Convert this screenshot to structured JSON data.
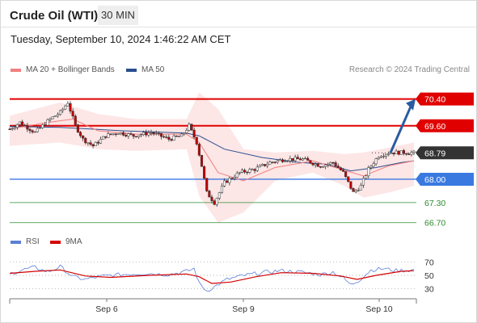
{
  "header": {
    "title": "Crude Oil (WTI)",
    "timeframe": "30 MIN",
    "datetime": "Tuesday, September 10, 2024 1:46:22 AM CET"
  },
  "legend": {
    "ma20_label": "MA 20 + Bollinger Bands",
    "ma50_label": "MA 50",
    "ma20_color": "#f08080",
    "ma50_color": "#2a4f8f",
    "credit": "Research © 2024 Trading Central"
  },
  "rsi_legend": {
    "rsi_label": "RSI",
    "ma9_label": "9MA",
    "rsi_color": "#5b7fd6",
    "ma9_color": "#d40000"
  },
  "colors": {
    "resistance": "#e00000",
    "support": "#3a7ae0",
    "secondary_support": "#2e8b2e",
    "current_price": "#333333",
    "arrow": "#2a5ba0",
    "candle_up": "#ffffff",
    "candle_down": "#c00000"
  },
  "chart_data": {
    "type": "candlestick",
    "x_tick_labels": [
      "Sep 6",
      "Sep 9",
      "Sep 10"
    ],
    "price_range": [
      66.5,
      70.9
    ],
    "levels": [
      {
        "value": 70.4,
        "label": "70.40",
        "kind": "resistance"
      },
      {
        "value": 69.6,
        "label": "69.60",
        "kind": "resistance"
      },
      {
        "value": 68.79,
        "label": "68.79",
        "kind": "current"
      },
      {
        "value": 68.0,
        "label": "68.00",
        "kind": "support"
      },
      {
        "value": 67.3,
        "label": "67.30",
        "kind": "secondary"
      },
      {
        "value": 66.7,
        "label": "66.70",
        "kind": "secondary"
      }
    ],
    "forecast_target": 70.4,
    "price_path": [
      [
        0,
        69.5
      ],
      [
        8,
        69.7
      ],
      [
        20,
        69.4
      ],
      [
        32,
        69.8
      ],
      [
        40,
        70.0
      ],
      [
        46,
        70.3
      ],
      [
        52,
        69.6
      ],
      [
        58,
        69.2
      ],
      [
        66,
        69.0
      ],
      [
        76,
        69.3
      ],
      [
        86,
        69.4
      ],
      [
        98,
        69.3
      ],
      [
        112,
        69.4
      ],
      [
        126,
        69.2
      ],
      [
        136,
        69.3
      ],
      [
        142,
        69.6
      ],
      [
        148,
        69.1
      ],
      [
        152,
        68.4
      ],
      [
        156,
        67.6
      ],
      [
        162,
        67.3
      ],
      [
        170,
        67.9
      ],
      [
        182,
        68.2
      ],
      [
        194,
        68.3
      ],
      [
        206,
        68.5
      ],
      [
        218,
        68.6
      ],
      [
        232,
        68.6
      ],
      [
        246,
        68.4
      ],
      [
        256,
        68.5
      ],
      [
        264,
        68.2
      ],
      [
        272,
        67.6
      ],
      [
        278,
        67.8
      ],
      [
        284,
        68.3
      ],
      [
        292,
        68.7
      ],
      [
        300,
        68.8
      ],
      [
        312,
        68.8
      ],
      [
        320,
        68.79
      ]
    ],
    "ma50_path": [
      [
        0,
        69.58
      ],
      [
        40,
        69.55
      ],
      [
        90,
        69.45
      ],
      [
        140,
        69.38
      ],
      [
        150,
        69.3
      ],
      [
        170,
        68.9
      ],
      [
        200,
        68.65
      ],
      [
        230,
        68.5
      ],
      [
        250,
        68.45
      ],
      [
        270,
        68.25
      ],
      [
        290,
        68.35
      ],
      [
        310,
        68.5
      ],
      [
        320,
        68.55
      ]
    ],
    "ma20_path": [
      [
        0,
        69.5
      ],
      [
        30,
        69.7
      ],
      [
        50,
        69.8
      ],
      [
        70,
        69.45
      ],
      [
        100,
        69.35
      ],
      [
        140,
        69.35
      ],
      [
        150,
        69.1
      ],
      [
        165,
        68.2
      ],
      [
        185,
        67.95
      ],
      [
        210,
        68.35
      ],
      [
        240,
        68.55
      ],
      [
        262,
        68.3
      ],
      [
        280,
        68.1
      ],
      [
        300,
        68.4
      ],
      [
        320,
        68.55
      ]
    ],
    "bollinger_upper": [
      [
        0,
        69.9
      ],
      [
        40,
        70.3
      ],
      [
        70,
        69.95
      ],
      [
        100,
        69.8
      ],
      [
        140,
        69.8
      ],
      [
        150,
        70.6
      ],
      [
        165,
        70.1
      ],
      [
        185,
        68.9
      ],
      [
        210,
        68.8
      ],
      [
        240,
        68.85
      ],
      [
        265,
        68.75
      ],
      [
        280,
        68.8
      ],
      [
        300,
        68.95
      ],
      [
        320,
        69.1
      ]
    ],
    "bollinger_lower": [
      [
        0,
        69.0
      ],
      [
        40,
        69.1
      ],
      [
        70,
        68.9
      ],
      [
        100,
        68.85
      ],
      [
        140,
        68.9
      ],
      [
        150,
        67.5
      ],
      [
        165,
        66.7
      ],
      [
        185,
        67.0
      ],
      [
        210,
        67.95
      ],
      [
        240,
        68.2
      ],
      [
        265,
        67.8
      ],
      [
        280,
        67.45
      ],
      [
        300,
        67.6
      ],
      [
        320,
        67.8
      ]
    ],
    "rsi": {
      "levels": [
        70,
        50,
        30
      ],
      "labels": [
        "70",
        "50",
        "30"
      ],
      "range": [
        20,
        80
      ],
      "rsi_path": [
        [
          0,
          52
        ],
        [
          10,
          58
        ],
        [
          20,
          62
        ],
        [
          30,
          55
        ],
        [
          40,
          63
        ],
        [
          50,
          48
        ],
        [
          60,
          44
        ],
        [
          70,
          48
        ],
        [
          80,
          50
        ],
        [
          95,
          52
        ],
        [
          110,
          53
        ],
        [
          125,
          51
        ],
        [
          140,
          56
        ],
        [
          146,
          60
        ],
        [
          150,
          38
        ],
        [
          156,
          27
        ],
        [
          162,
          33
        ],
        [
          172,
          44
        ],
        [
          186,
          50
        ],
        [
          200,
          54
        ],
        [
          214,
          57
        ],
        [
          230,
          55
        ],
        [
          246,
          51
        ],
        [
          256,
          55
        ],
        [
          264,
          46
        ],
        [
          270,
          36
        ],
        [
          276,
          42
        ],
        [
          286,
          58
        ],
        [
          296,
          60
        ],
        [
          306,
          57
        ],
        [
          320,
          58
        ]
      ],
      "ma9_path": [
        [
          0,
          53
        ],
        [
          20,
          56
        ],
        [
          40,
          58
        ],
        [
          60,
          49
        ],
        [
          80,
          47
        ],
        [
          110,
          50
        ],
        [
          140,
          52
        ],
        [
          150,
          48
        ],
        [
          160,
          38
        ],
        [
          175,
          40
        ],
        [
          195,
          48
        ],
        [
          215,
          54
        ],
        [
          240,
          53
        ],
        [
          262,
          49
        ],
        [
          275,
          44
        ],
        [
          290,
          50
        ],
        [
          310,
          56
        ],
        [
          320,
          57
        ]
      ]
    }
  }
}
